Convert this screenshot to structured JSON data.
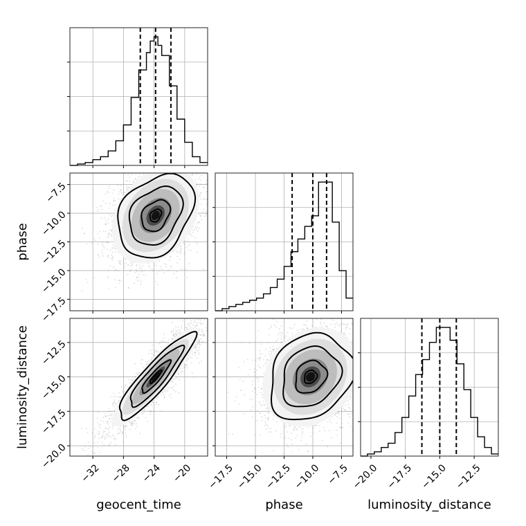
{
  "chart_data": {
    "type": "corner",
    "parameters": [
      "geocent_time",
      "phase",
      "luminosity_distance"
    ],
    "axes": {
      "geocent_time": {
        "label": "geocent_time",
        "range": [
          -35,
          -17
        ],
        "ticks": [
          -32,
          -28,
          -24,
          -20
        ],
        "tick_labels": [
          "−32",
          "−28",
          "−24",
          "−20"
        ]
      },
      "phase": {
        "label": "phase",
        "range": [
          -18.5,
          -6.5
        ],
        "ticks": [
          -17.5,
          -15.0,
          -12.5,
          -10.0,
          -7.5
        ],
        "tick_labels": [
          "−17.5",
          "−15.0",
          "−12.5",
          "−10.0",
          "−7.5"
        ]
      },
      "luminosity_distance": {
        "label": "luminosity_distance",
        "range": [
          -20.75,
          -10.75
        ],
        "ticks": [
          -20.0,
          -17.5,
          -15.0,
          -12.5
        ],
        "tick_labels": [
          "−20.0",
          "−17.5",
          "−15.0",
          "−12.5"
        ]
      }
    },
    "marginals": {
      "geocent_time": {
        "bin_edges": [
          -35,
          -34,
          -33,
          -32,
          -31,
          -30,
          -29,
          -28,
          -27,
          -26,
          -25,
          -24.5,
          -24,
          -23.5,
          -23,
          -22,
          -21,
          -20,
          -19,
          -18,
          -17
        ],
        "counts": [
          0,
          1,
          2,
          4,
          6,
          10,
          17,
          28,
          47,
          66,
          78,
          86,
          89,
          83,
          76,
          55,
          32,
          16,
          6,
          2
        ],
        "quantiles": [
          -25.8,
          -23.8,
          -21.8
        ]
      },
      "phase": {
        "bin_edges": [
          -18.5,
          -17.9,
          -17.3,
          -16.7,
          -16.1,
          -15.5,
          -14.9,
          -14.3,
          -13.7,
          -13.1,
          -12.5,
          -11.9,
          -11.3,
          -10.7,
          -10.1,
          -9.5,
          -8.9,
          -8.3,
          -7.7,
          -7.1,
          -6.5
        ],
        "counts": [
          0,
          1,
          2,
          3,
          4,
          5,
          6,
          8,
          11,
          15,
          21,
          28,
          34,
          40,
          45,
          61,
          61,
          42,
          19,
          6
        ],
        "quantiles": [
          -11.8,
          -10.0,
          -8.8
        ]
      },
      "luminosity_distance": {
        "bin_edges": [
          -20.75,
          -20.25,
          -19.75,
          -19.25,
          -18.75,
          -18.25,
          -17.75,
          -17.25,
          -16.75,
          -16.25,
          -15.75,
          -15.25,
          -14.75,
          -14.25,
          -13.75,
          -13.25,
          -12.75,
          -12.25,
          -11.75,
          -11.25,
          -10.75
        ],
        "counts": [
          0,
          1,
          2,
          4,
          6,
          11,
          18,
          28,
          38,
          45,
          53,
          60,
          60,
          54,
          43,
          31,
          18,
          9,
          4,
          1
        ],
        "quantiles": [
          -16.3,
          -15.0,
          -13.8
        ]
      }
    },
    "joint": [
      {
        "x": "geocent_time",
        "y": "phase",
        "mean": [
          -23.8,
          -10.2
        ],
        "std": [
          3.0,
          2.2
        ],
        "corr": 0.3
      },
      {
        "x": "geocent_time",
        "y": "luminosity_distance",
        "mean": [
          -23.8,
          -15.0
        ],
        "std": [
          3.0,
          1.9
        ],
        "corr": 0.9
      },
      {
        "x": "phase",
        "y": "luminosity_distance",
        "mean": [
          -10.2,
          -15.0
        ],
        "std": [
          2.2,
          1.9
        ],
        "corr": 0.2
      }
    ],
    "grid": true
  }
}
